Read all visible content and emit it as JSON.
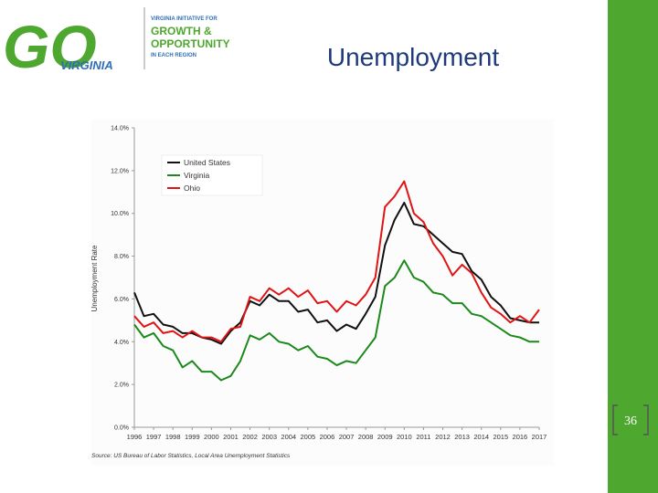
{
  "logo": {
    "mark": "GO",
    "state": "VIRGINIA",
    "line1": "VIRGINIA INITIATIVE FOR",
    "line2": "GROWTH &",
    "line3": "OPPORTUNITY",
    "line4": "IN EACH REGION"
  },
  "slide": {
    "title": "Unemployment",
    "page_number": "36"
  },
  "chart_data": {
    "type": "line",
    "y_label": "Unemployment Rate",
    "source": "Source: US Bureau of Labor Statistics, Local Area Unemployment Statistics",
    "x": [
      1996,
      1996.5,
      1997,
      1997.5,
      1998,
      1998.5,
      1999,
      1999.5,
      2000,
      2000.5,
      2001,
      2001.5,
      2002,
      2002.5,
      2003,
      2003.5,
      2004,
      2004.5,
      2005,
      2005.5,
      2006,
      2006.5,
      2007,
      2007.5,
      2008,
      2008.5,
      2009,
      2009.5,
      2010,
      2010.5,
      2011,
      2011.5,
      2012,
      2012.5,
      2013,
      2013.5,
      2014,
      2014.5,
      2015,
      2015.5,
      2016,
      2016.5,
      2017
    ],
    "xlim": [
      1996,
      2017
    ],
    "xticks": [
      1996,
      1997,
      1998,
      1999,
      2000,
      2001,
      2002,
      2003,
      2004,
      2005,
      2006,
      2007,
      2008,
      2009,
      2010,
      2011,
      2012,
      2013,
      2014,
      2015,
      2016,
      2017
    ],
    "ylim": [
      0,
      14
    ],
    "yticks": [
      {
        "value": 0,
        "label": "0.0%"
      },
      {
        "value": 2,
        "label": "2.0%"
      },
      {
        "value": 4,
        "label": "4.0%"
      },
      {
        "value": 6,
        "label": "6.0%"
      },
      {
        "value": 8,
        "label": "8.0%"
      },
      {
        "value": 10,
        "label": "10.0%"
      },
      {
        "value": 12,
        "label": "12.0%"
      },
      {
        "value": 14,
        "label": "14.0%"
      }
    ],
    "grid": false,
    "legend": "upper left",
    "series": [
      {
        "name": "United States",
        "color": "#111111",
        "values": [
          6.3,
          5.2,
          5.3,
          4.8,
          4.7,
          4.4,
          4.4,
          4.2,
          4.1,
          3.9,
          4.5,
          4.9,
          5.9,
          5.7,
          6.2,
          5.9,
          5.9,
          5.4,
          5.5,
          4.9,
          5.0,
          4.5,
          4.8,
          4.6,
          5.3,
          6.1,
          8.5,
          9.7,
          10.5,
          9.5,
          9.4,
          9.0,
          8.6,
          8.2,
          8.1,
          7.3,
          6.9,
          6.1,
          5.7,
          5.1,
          5.0,
          4.9,
          4.9
        ]
      },
      {
        "name": "Virginia",
        "color": "#1b8a1b",
        "values": [
          4.8,
          4.2,
          4.4,
          3.8,
          3.6,
          2.8,
          3.1,
          2.6,
          2.6,
          2.2,
          2.4,
          3.1,
          4.3,
          4.1,
          4.4,
          4.0,
          3.9,
          3.6,
          3.8,
          3.3,
          3.2,
          2.9,
          3.1,
          3.0,
          3.6,
          4.2,
          6.6,
          7.0,
          7.8,
          7.0,
          6.8,
          6.3,
          6.2,
          5.8,
          5.8,
          5.3,
          5.2,
          4.9,
          4.6,
          4.3,
          4.2,
          4.0,
          4.0
        ]
      },
      {
        "name": "Ohio",
        "color": "#e01414",
        "values": [
          5.2,
          4.7,
          4.9,
          4.4,
          4.5,
          4.2,
          4.5,
          4.2,
          4.2,
          4.0,
          4.6,
          4.7,
          6.1,
          5.9,
          6.5,
          6.2,
          6.5,
          6.1,
          6.4,
          5.8,
          5.9,
          5.4,
          5.9,
          5.7,
          6.2,
          7.0,
          10.3,
          10.8,
          11.5,
          10.0,
          9.6,
          8.6,
          8.0,
          7.1,
          7.6,
          7.2,
          6.3,
          5.6,
          5.3,
          4.9,
          5.2,
          4.9,
          5.5
        ]
      }
    ]
  }
}
